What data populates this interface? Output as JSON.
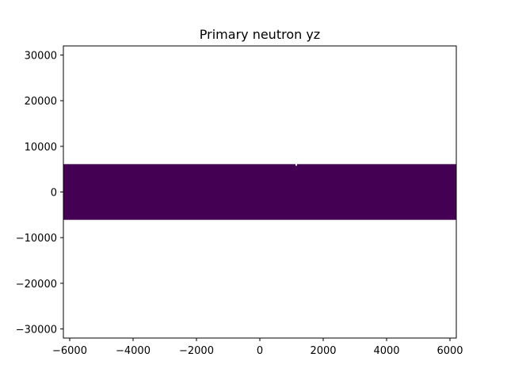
{
  "chart_data": {
    "type": "heatmap",
    "title": "Primary neutron yz",
    "xlabel": "",
    "ylabel": "",
    "xlim": [
      -6200,
      6200
    ],
    "ylim": [
      -32000,
      32000
    ],
    "x_ticks": [
      -6000,
      -4000,
      -2000,
      0,
      2000,
      4000,
      6000
    ],
    "x_tick_labels": [
      "−6000",
      "−4000",
      "−2000",
      "0",
      "2000",
      "4000",
      "6000"
    ],
    "y_ticks": [
      -30000,
      -20000,
      -10000,
      0,
      10000,
      20000,
      30000
    ],
    "y_tick_labels": [
      "−30000",
      "−20000",
      "−10000",
      "0",
      "10000",
      "20000",
      "30000"
    ],
    "grid": false,
    "colormap": "viridis",
    "filled_region": {
      "x_range": [
        -6200,
        6200
      ],
      "y_range": [
        -6100,
        6100
      ],
      "color": "#440154"
    },
    "hole": {
      "x": 1150,
      "y": 6100
    }
  }
}
